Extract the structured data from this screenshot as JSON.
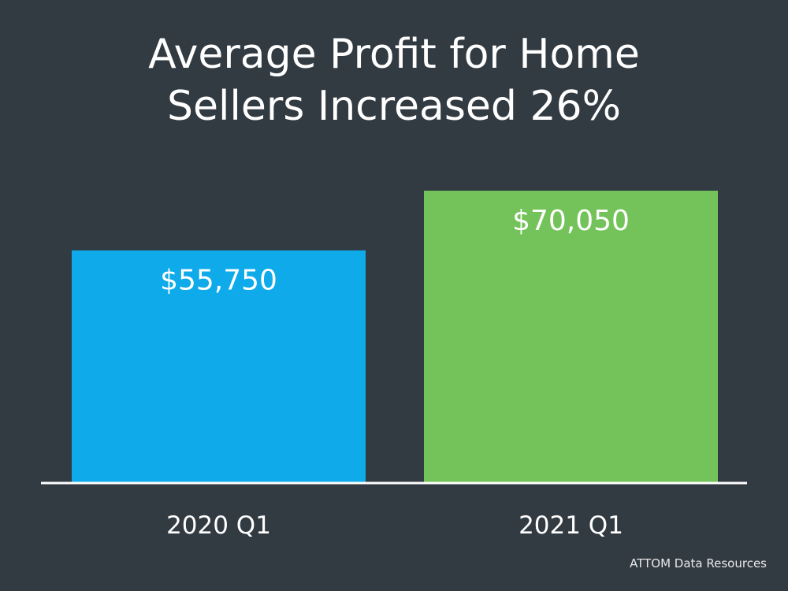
{
  "chart_data": {
    "type": "bar",
    "title_lines": [
      "Average Profit for Home",
      "Sellers Increased 26%"
    ],
    "categories": [
      "2020 Q1",
      "2021 Q1"
    ],
    "values": [
      55750,
      70050
    ],
    "value_labels": [
      "$55,750",
      "$70,050"
    ],
    "colors": [
      "#0eaaea",
      "#74c35a"
    ],
    "ylim": [
      0,
      70800
    ],
    "grid": false,
    "legend": "none",
    "source": "ATTOM Data Resources"
  }
}
